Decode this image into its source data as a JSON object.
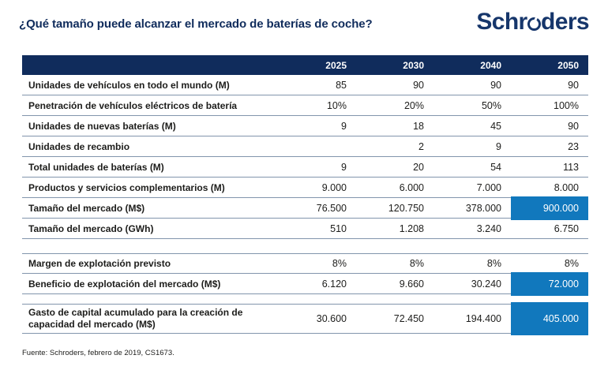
{
  "page": {
    "title": "¿Qué tamaño puede alcanzar el mercado de baterías de coche?",
    "source": "Fuente: Schroders, febrero de 2019, CS1673."
  },
  "logo": {
    "text": "Schroders",
    "part_before_o": "Schr",
    "part_after_o": "ders"
  },
  "colors": {
    "navy": "#102c5c",
    "logo_navy": "#16366b",
    "highlight_blue": "#1178bd",
    "divider_line": "#8295ac",
    "text": "#1d1d1b"
  },
  "chart_data": {
    "type": "table",
    "title": "¿Qué tamaño puede alcanzar el mercado de baterías de coche?",
    "columns": [
      "2025",
      "2030",
      "2040",
      "2050"
    ],
    "highlight_note": "2050-column cells of the three rows marked highlight_last are shown white-on-blue",
    "groups": [
      {
        "rows": [
          {
            "label": "Unidades de vehículos en todo el mundo (M)",
            "values": [
              "85",
              "90",
              "90",
              "90"
            ]
          },
          {
            "label": "Penetración de vehículos eléctricos de batería",
            "values": [
              "10%",
              "20%",
              "50%",
              "100%"
            ]
          },
          {
            "label": "Unidades de nuevas baterías (M)",
            "values": [
              "9",
              "18",
              "45",
              "90"
            ]
          },
          {
            "label": "Unidades de recambio",
            "values": [
              "",
              "2",
              "9",
              "23"
            ]
          },
          {
            "label": "Total unidades de baterías (M)",
            "values": [
              "9",
              "20",
              "54",
              "113"
            ]
          },
          {
            "label": "Productos y servicios complementarios (M)",
            "values": [
              "9.000",
              "6.000",
              "7.000",
              "8.000"
            ]
          },
          {
            "label": "Tamaño del mercado (M$)",
            "values": [
              "76.500",
              "120.750",
              "378.000",
              "900.000"
            ],
            "highlight_last": true
          },
          {
            "label": "Tamaño del mercado (GWh)",
            "values": [
              "510",
              "1.208",
              "3.240",
              "6.750"
            ]
          }
        ]
      },
      {
        "rows": [
          {
            "label": "Margen de explotación previsto",
            "values": [
              "8%",
              "8%",
              "8%",
              "8%"
            ]
          },
          {
            "label": "Beneficio de explotación del mercado (M$)",
            "values": [
              "6.120",
              "9.660",
              "30.240",
              "72.000"
            ],
            "highlight_last": true
          }
        ]
      },
      {
        "rows": [
          {
            "label": "Gasto de capital acumulado para la creación de capacidad del mercado (M$)",
            "values": [
              "30.600",
              "72.450",
              "194.400",
              "405.000"
            ],
            "highlight_last": true,
            "tall": true
          }
        ]
      }
    ],
    "source": "Fuente: Schroders, febrero de 2019, CS1673."
  }
}
